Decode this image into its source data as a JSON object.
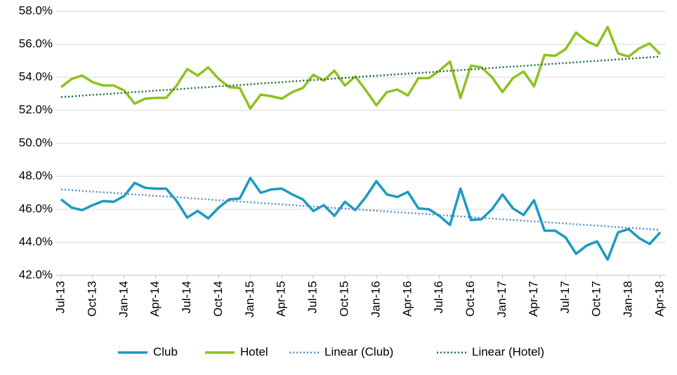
{
  "chart_data": {
    "type": "line",
    "categories": [
      "Jul-13",
      null,
      null,
      "Oct-13",
      null,
      null,
      "Jan-14",
      null,
      null,
      "Apr-14",
      null,
      null,
      "Jul-14",
      null,
      null,
      "Oct-14",
      null,
      null,
      "Jan-15",
      null,
      null,
      "Apr-15",
      null,
      null,
      "Jul-15",
      null,
      null,
      "Oct-15",
      null,
      null,
      "Jan-16",
      null,
      null,
      "Apr-16",
      null,
      null,
      "Jul-16",
      null,
      null,
      "Oct-16",
      null,
      null,
      "Jan-17",
      null,
      null,
      "Apr-17",
      null,
      null,
      "Jul-17",
      null,
      null,
      "Oct-17",
      null,
      null,
      "Jan-18",
      null,
      null,
      "Apr-18"
    ],
    "series": [
      {
        "name": "Club",
        "color": "#1b9ac2",
        "style": "solid",
        "values": [
          46.6,
          46.1,
          45.95,
          46.25,
          46.5,
          46.45,
          46.8,
          47.6,
          47.3,
          47.25,
          47.25,
          46.5,
          45.5,
          45.9,
          45.45,
          46.1,
          46.6,
          46.65,
          47.9,
          47.0,
          47.2,
          47.25,
          46.9,
          46.6,
          45.9,
          46.25,
          45.6,
          46.45,
          45.95,
          46.75,
          47.7,
          46.9,
          46.75,
          47.05,
          46.05,
          46.0,
          45.6,
          45.05,
          47.25,
          45.35,
          45.4,
          46.0,
          46.9,
          46.05,
          45.65,
          46.55,
          44.7,
          44.7,
          44.3,
          43.3,
          43.8,
          44.05,
          42.95,
          44.6,
          44.8,
          44.25,
          43.9,
          44.6
        ]
      },
      {
        "name": "Hotel",
        "color": "#8dc21f",
        "style": "solid",
        "values": [
          53.4,
          53.9,
          54.1,
          53.7,
          53.5,
          53.5,
          53.2,
          52.4,
          52.7,
          52.75,
          52.75,
          53.5,
          54.5,
          54.1,
          54.6,
          53.9,
          53.4,
          53.35,
          52.1,
          52.95,
          52.85,
          52.7,
          53.1,
          53.35,
          54.15,
          53.8,
          54.4,
          53.5,
          54.05,
          53.2,
          52.3,
          53.1,
          53.25,
          52.9,
          53.95,
          53.95,
          54.4,
          54.95,
          52.75,
          54.7,
          54.6,
          54.0,
          53.1,
          53.95,
          54.35,
          53.45,
          55.35,
          55.3,
          55.7,
          56.7,
          56.2,
          55.9,
          57.05,
          55.45,
          55.25,
          55.75,
          56.05,
          55.4
        ]
      },
      {
        "name": "Linear (Club)",
        "color": "#5b8fc4",
        "style": "dotted",
        "values": [
          47.2,
          47.16,
          47.11,
          47.07,
          47.03,
          46.99,
          46.94,
          46.9,
          46.86,
          46.81,
          46.77,
          46.73,
          46.68,
          46.64,
          46.6,
          46.55,
          46.51,
          46.47,
          46.43,
          46.38,
          46.34,
          46.3,
          46.25,
          46.21,
          46.17,
          46.13,
          46.08,
          46.04,
          46.0,
          45.95,
          45.91,
          45.87,
          45.82,
          45.78,
          45.74,
          45.7,
          45.65,
          45.61,
          45.57,
          45.52,
          45.48,
          45.44,
          45.39,
          45.35,
          45.31,
          45.27,
          45.22,
          45.18,
          45.14,
          45.09,
          45.05,
          45.01,
          44.96,
          44.92,
          44.88,
          44.84,
          44.79,
          44.75
        ]
      },
      {
        "name": "Linear (Hotel)",
        "color": "#1e6b3a",
        "style": "dotted",
        "values": [
          52.8,
          52.84,
          52.89,
          52.93,
          52.97,
          53.01,
          53.06,
          53.1,
          53.14,
          53.19,
          53.23,
          53.27,
          53.32,
          53.36,
          53.4,
          53.45,
          53.49,
          53.53,
          53.57,
          53.62,
          53.66,
          53.7,
          53.75,
          53.79,
          53.83,
          53.87,
          53.92,
          53.96,
          54.0,
          54.05,
          54.09,
          54.13,
          54.18,
          54.22,
          54.26,
          54.3,
          54.35,
          54.39,
          54.43,
          54.48,
          54.52,
          54.56,
          54.61,
          54.65,
          54.69,
          54.73,
          54.78,
          54.82,
          54.86,
          54.91,
          54.95,
          54.99,
          55.04,
          55.08,
          55.12,
          55.16,
          55.21,
          55.25
        ]
      }
    ],
    "ylim": [
      42,
      58
    ],
    "yticks": [
      {
        "value": 42,
        "label": "42.0%"
      },
      {
        "value": 44,
        "label": "44.0%"
      },
      {
        "value": 46,
        "label": "46.0%"
      },
      {
        "value": 48,
        "label": "48.0%"
      },
      {
        "value": 50,
        "label": "50.0%"
      },
      {
        "value": 52,
        "label": "52.0%"
      },
      {
        "value": 54,
        "label": "54.0%"
      },
      {
        "value": 56,
        "label": "56.0%"
      },
      {
        "value": 58,
        "label": "58.0%"
      }
    ],
    "grid": true,
    "legend": "bottom"
  }
}
